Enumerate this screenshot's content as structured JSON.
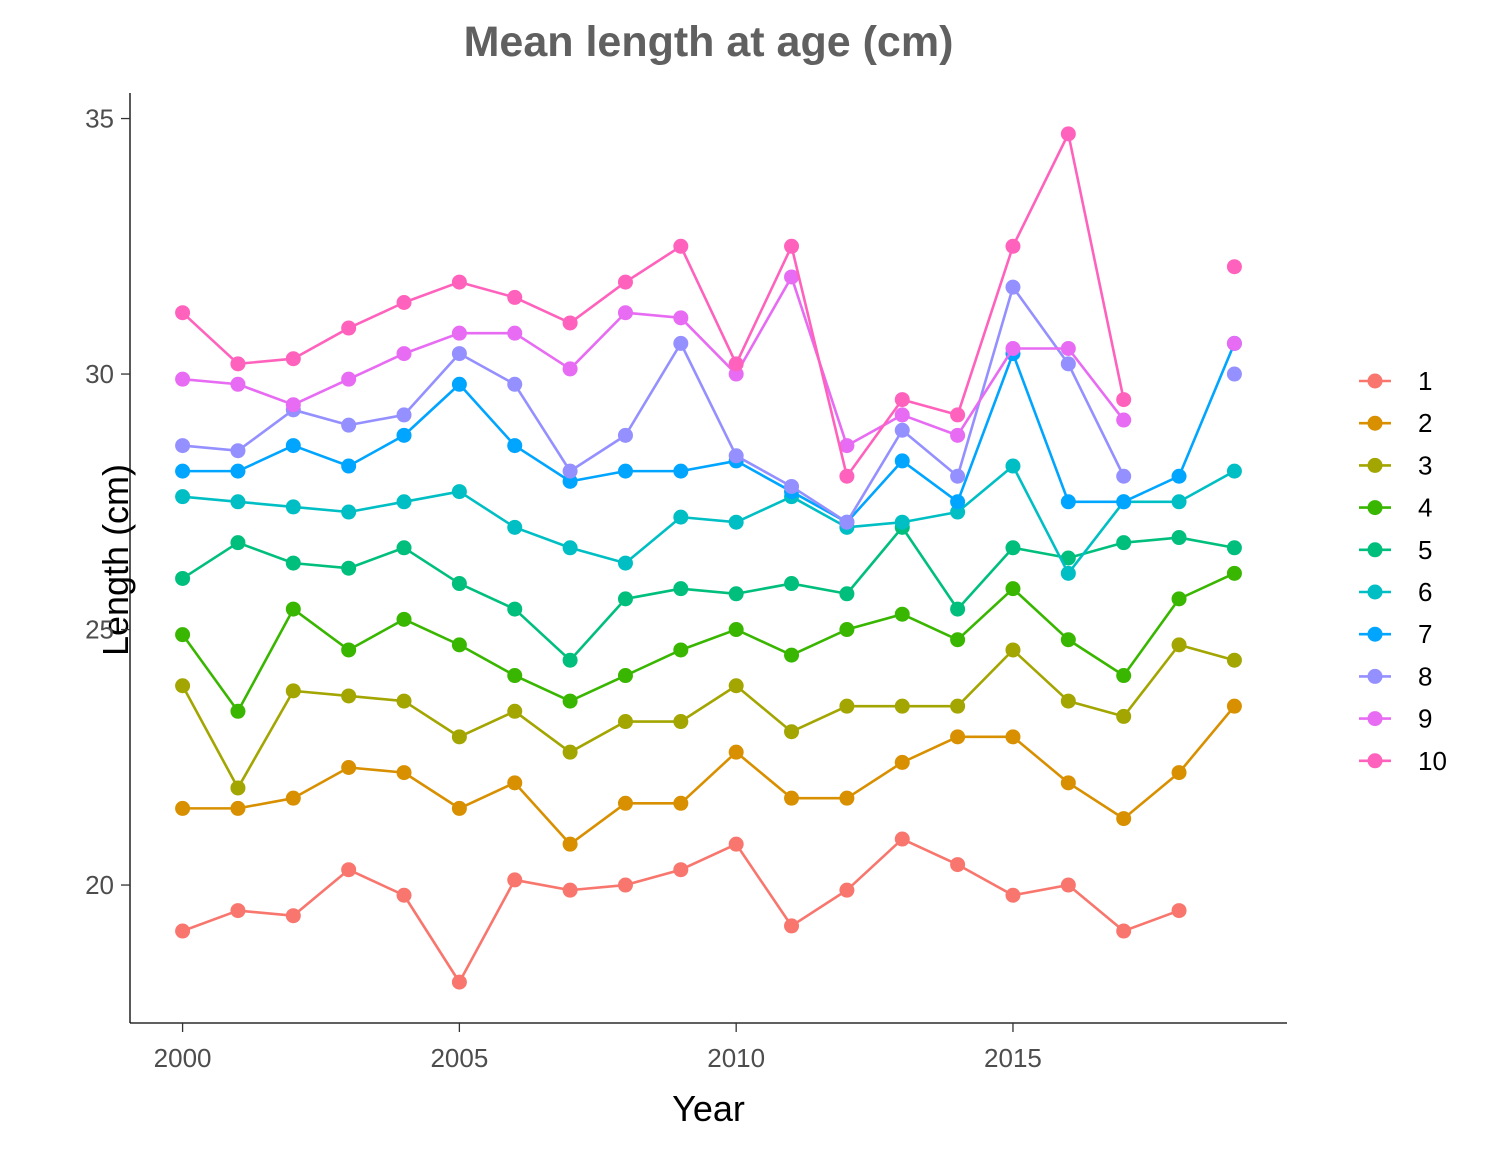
{
  "chart_data": {
    "type": "line",
    "title": "Mean length at age (cm)",
    "xlabel": "Year",
    "ylabel": "Length (cm)",
    "xlim": [
      1999.05,
      2019.95
    ],
    "ylim": [
      17.3,
      35.5
    ],
    "x_ticks": [
      2000,
      2005,
      2010,
      2015
    ],
    "y_ticks": [
      20,
      25,
      30,
      35
    ],
    "grid": false,
    "legend_position": "right",
    "x": [
      2000,
      2001,
      2002,
      2003,
      2004,
      2005,
      2006,
      2007,
      2008,
      2009,
      2010,
      2011,
      2012,
      2013,
      2014,
      2015,
      2016,
      2017,
      2018,
      2019
    ],
    "series": [
      {
        "name": "1",
        "color": "#F8766D",
        "values": [
          19.1,
          19.5,
          19.4,
          20.3,
          19.8,
          18.1,
          20.1,
          19.9,
          20.0,
          20.3,
          20.8,
          19.2,
          19.9,
          20.9,
          20.4,
          19.8,
          20.0,
          19.1,
          19.5,
          null
        ]
      },
      {
        "name": "2",
        "color": "#D89000",
        "values": [
          21.5,
          21.5,
          21.7,
          22.3,
          22.2,
          21.5,
          22.0,
          20.8,
          21.6,
          21.6,
          22.6,
          21.7,
          21.7,
          22.4,
          22.9,
          22.9,
          22.0,
          21.3,
          22.2,
          23.5
        ]
      },
      {
        "name": "3",
        "color": "#A3A500",
        "values": [
          23.9,
          21.9,
          23.8,
          23.7,
          23.6,
          22.9,
          23.4,
          22.6,
          23.2,
          23.2,
          23.9,
          23.0,
          23.5,
          23.5,
          23.5,
          24.6,
          23.6,
          23.3,
          24.7,
          24.4
        ]
      },
      {
        "name": "4",
        "color": "#39B600",
        "values": [
          24.9,
          23.4,
          25.4,
          24.6,
          25.2,
          24.7,
          24.1,
          23.6,
          24.1,
          24.6,
          25.0,
          24.5,
          25.0,
          25.3,
          24.8,
          25.8,
          24.8,
          24.1,
          25.6,
          26.1
        ]
      },
      {
        "name": "5",
        "color": "#00BF7D",
        "values": [
          26.0,
          26.7,
          26.3,
          26.2,
          26.6,
          25.9,
          25.4,
          24.4,
          25.6,
          25.8,
          25.7,
          25.9,
          25.7,
          27.0,
          25.4,
          26.6,
          26.4,
          26.7,
          26.8,
          26.6
        ]
      },
      {
        "name": "6",
        "color": "#00BFC4",
        "values": [
          27.6,
          27.5,
          27.4,
          27.3,
          27.5,
          27.7,
          27.0,
          26.6,
          26.3,
          27.2,
          27.1,
          27.6,
          27.0,
          27.1,
          27.3,
          28.2,
          26.1,
          27.5,
          27.5,
          28.1
        ]
      },
      {
        "name": "7",
        "color": "#00A5FF",
        "values": [
          28.1,
          28.1,
          28.6,
          28.2,
          28.8,
          29.8,
          28.6,
          27.9,
          28.1,
          28.1,
          28.3,
          27.7,
          27.1,
          28.3,
          27.5,
          30.4,
          27.5,
          27.5,
          28.0,
          30.6
        ]
      },
      {
        "name": "8",
        "color": "#9590FF",
        "values": [
          28.6,
          28.5,
          29.3,
          29.0,
          29.2,
          30.4,
          29.8,
          28.1,
          28.8,
          30.6,
          28.4,
          27.8,
          27.1,
          28.9,
          28.0,
          31.7,
          30.2,
          28.0,
          null,
          30.0
        ]
      },
      {
        "name": "9",
        "color": "#E76BF3",
        "values": [
          29.9,
          29.8,
          29.4,
          29.9,
          30.4,
          30.8,
          30.8,
          30.1,
          31.2,
          31.1,
          30.0,
          31.9,
          28.6,
          29.2,
          28.8,
          30.5,
          30.5,
          29.1,
          null,
          30.6
        ]
      },
      {
        "name": "10",
        "color": "#FF62BC",
        "values": [
          31.2,
          30.2,
          30.3,
          30.9,
          31.4,
          31.8,
          31.5,
          31.0,
          31.8,
          32.5,
          30.2,
          32.5,
          28.0,
          29.5,
          29.2,
          32.5,
          34.7,
          29.5,
          null,
          32.1
        ]
      }
    ]
  }
}
